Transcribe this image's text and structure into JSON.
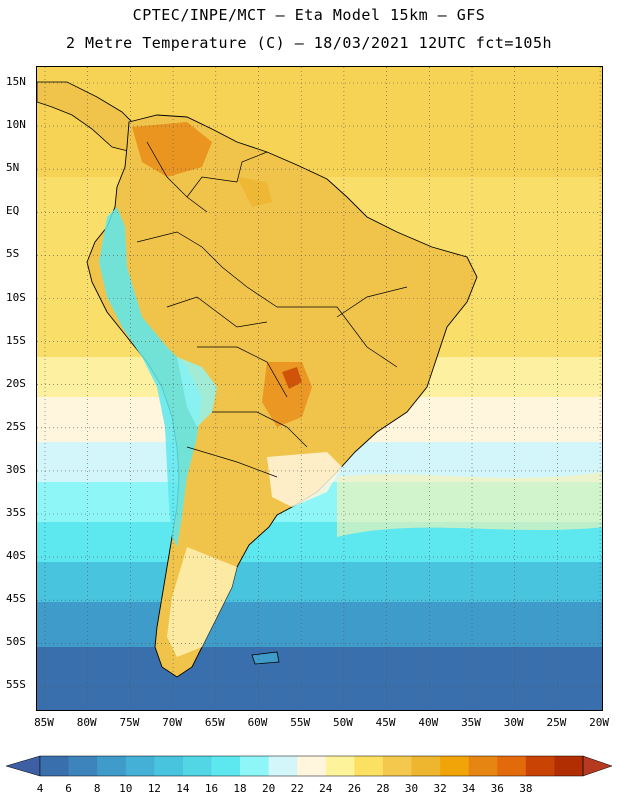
{
  "header": {
    "line1": "CPTEC/INPE/MCT –  Eta Model 15km – GFS",
    "line2": "2 Metre Temperature (C) – 18/03/2021 12UTC fct=105h"
  },
  "axes": {
    "lat_labels": [
      "15N",
      "10N",
      "5N",
      "EQ",
      "5S",
      "10S",
      "15S",
      "20S",
      "25S",
      "30S",
      "35S",
      "40S",
      "45S",
      "50S",
      "55S"
    ],
    "lon_labels": [
      "85W",
      "80W",
      "75W",
      "70W",
      "65W",
      "60W",
      "55W",
      "50W",
      "45W",
      "40W",
      "35W",
      "30W",
      "25W",
      "20W"
    ]
  },
  "colorbar": {
    "values": [
      4,
      6,
      8,
      10,
      12,
      14,
      16,
      18,
      20,
      22,
      24,
      26,
      28,
      30,
      32,
      34,
      36,
      38
    ],
    "colors": [
      "#3a6fae",
      "#3d84bd",
      "#3f9bc9",
      "#44b0d6",
      "#48c4df",
      "#52d6e6",
      "#5de8ef",
      "#8ff6f8",
      "#d3f6fb",
      "#fff6dd",
      "#fdf39a",
      "#fbe062",
      "#f3c84c",
      "#eeb52e",
      "#f0a408",
      "#e78512",
      "#e26a0b",
      "#c84304",
      "#b02e02"
    ],
    "low_color": "#3e5fa3",
    "high_color": "#b53a1f"
  },
  "colors": {
    "ocean_warm": "#f9df6a",
    "land_base": "#f0c44a",
    "coast_line": "#000000",
    "grid_line": "#555555"
  }
}
